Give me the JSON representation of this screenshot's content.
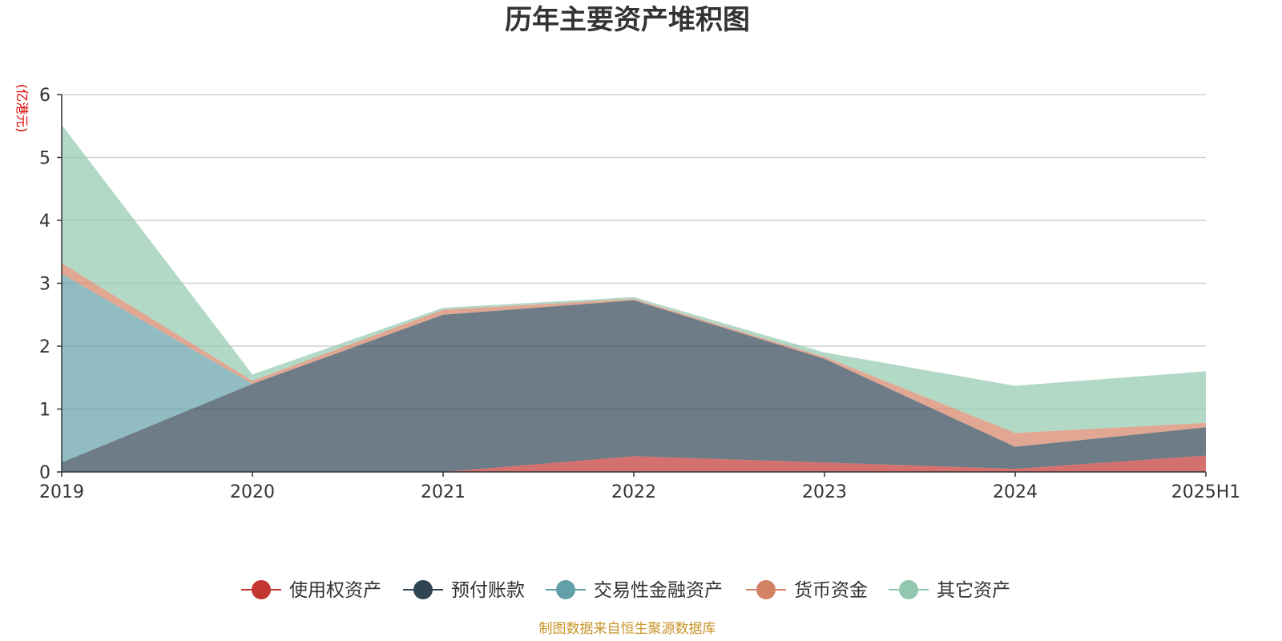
{
  "chart_data": {
    "type": "area",
    "title": "历年主要资产堆积图",
    "ylabel": "(亿港元)",
    "xlabel": "",
    "categories": [
      "2019",
      "2020",
      "2021",
      "2022",
      "2023",
      "2024",
      "2025H1"
    ],
    "y_ticks": [
      "0",
      "1",
      "2",
      "3",
      "4",
      "5",
      "6"
    ],
    "ylim": [
      0,
      6
    ],
    "grid": true,
    "stacked": true,
    "legend_position": "bottom",
    "series": [
      {
        "name": "使用权资产",
        "color": "#c23531",
        "values": [
          0.0,
          0.0,
          0.0,
          0.25,
          0.15,
          0.05,
          0.26
        ]
      },
      {
        "name": "预付账款",
        "color": "#2f4554",
        "values": [
          0.15,
          1.4,
          2.5,
          2.48,
          1.65,
          0.35,
          0.45
        ]
      },
      {
        "name": "交易性金融资产",
        "color": "#61a0a8",
        "values": [
          3.0,
          0.0,
          0.0,
          0.0,
          0.0,
          0.0,
          0.0
        ]
      },
      {
        "name": "货币资金",
        "color": "#d48265",
        "values": [
          0.17,
          0.05,
          0.08,
          0.02,
          0.03,
          0.22,
          0.07
        ]
      },
      {
        "name": "其它资产",
        "color": "#91c7ae",
        "values": [
          2.2,
          0.1,
          0.03,
          0.03,
          0.07,
          0.75,
          0.82
        ]
      }
    ],
    "source": "制图数据来自恒生聚源数据库"
  }
}
